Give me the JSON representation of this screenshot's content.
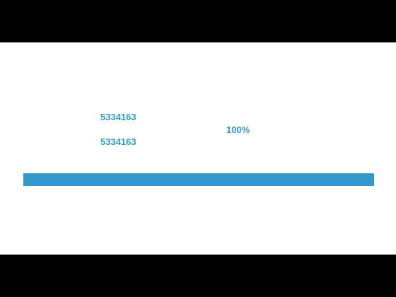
{
  "loader": {
    "bytes_loaded": "5334163",
    "bytes_total": "5334163",
    "percent_label": "100%",
    "progress_fraction": 1.0
  },
  "colors": {
    "accent": "#3399cc",
    "panel_background": "#ffffff",
    "letterbox": "#000000"
  }
}
